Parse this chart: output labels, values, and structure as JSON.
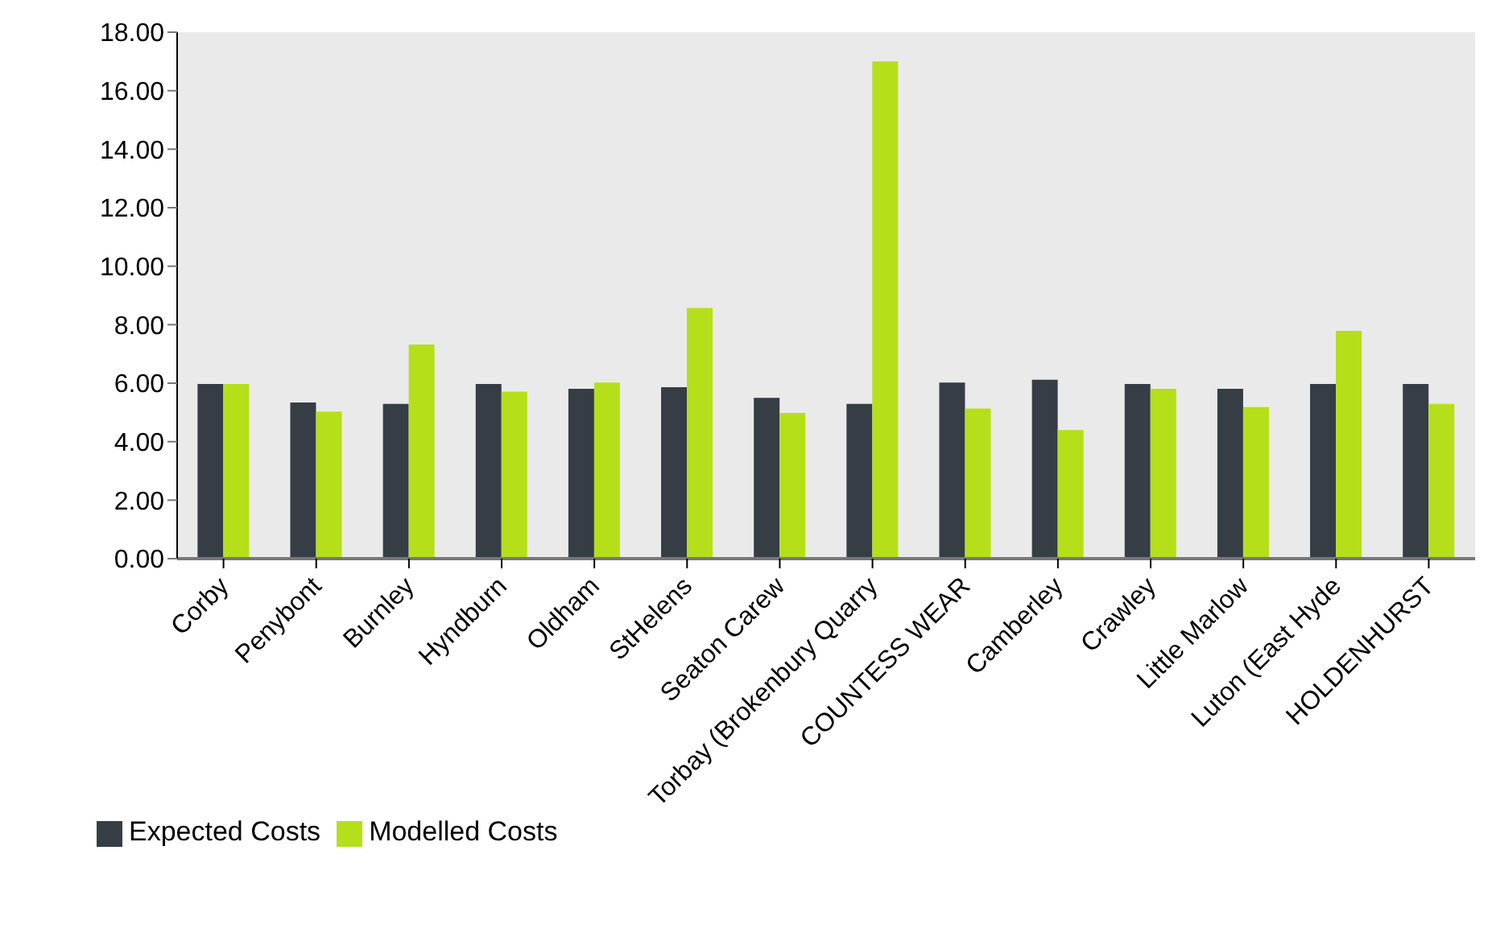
{
  "chart_data": {
    "type": "bar",
    "categories": [
      "Corby",
      "Penybont",
      "Burnley",
      "Hyndburn",
      "Oldham",
      "StHelens",
      "Seaton Carew",
      "Torbay (Brokenbury Quarry",
      "COUNTESS WEAR",
      "Camberley",
      "Crawley",
      "Little Marlow",
      "Luton (East Hyde",
      "HOLDENHURST"
    ],
    "series": [
      {
        "name": "Expected Costs",
        "color": "#363d45",
        "values": [
          5.97,
          5.34,
          5.29,
          5.97,
          5.81,
          5.86,
          5.5,
          5.29,
          6.02,
          6.12,
          5.97,
          5.81,
          5.97,
          5.97
        ]
      },
      {
        "name": "Modelled Costs",
        "color": "#b5df19",
        "values": [
          5.97,
          5.03,
          7.32,
          5.71,
          6.02,
          8.57,
          4.98,
          17.0,
          5.13,
          4.4,
          5.81,
          5.18,
          7.79,
          5.29
        ]
      }
    ],
    "ylim": [
      0,
      18
    ],
    "yticks": [
      {
        "value": 0,
        "label": "0.00"
      },
      {
        "value": 2,
        "label": "2.00"
      },
      {
        "value": 4,
        "label": "4.00"
      },
      {
        "value": 6,
        "label": "6.00"
      },
      {
        "value": 8,
        "label": "8.00"
      },
      {
        "value": 10,
        "label": "10.00"
      },
      {
        "value": 12,
        "label": "12.00"
      },
      {
        "value": 14,
        "label": "14.00"
      },
      {
        "value": 16,
        "label": "16.00"
      },
      {
        "value": 18,
        "label": "18.00"
      }
    ],
    "legend": "bottom left"
  }
}
